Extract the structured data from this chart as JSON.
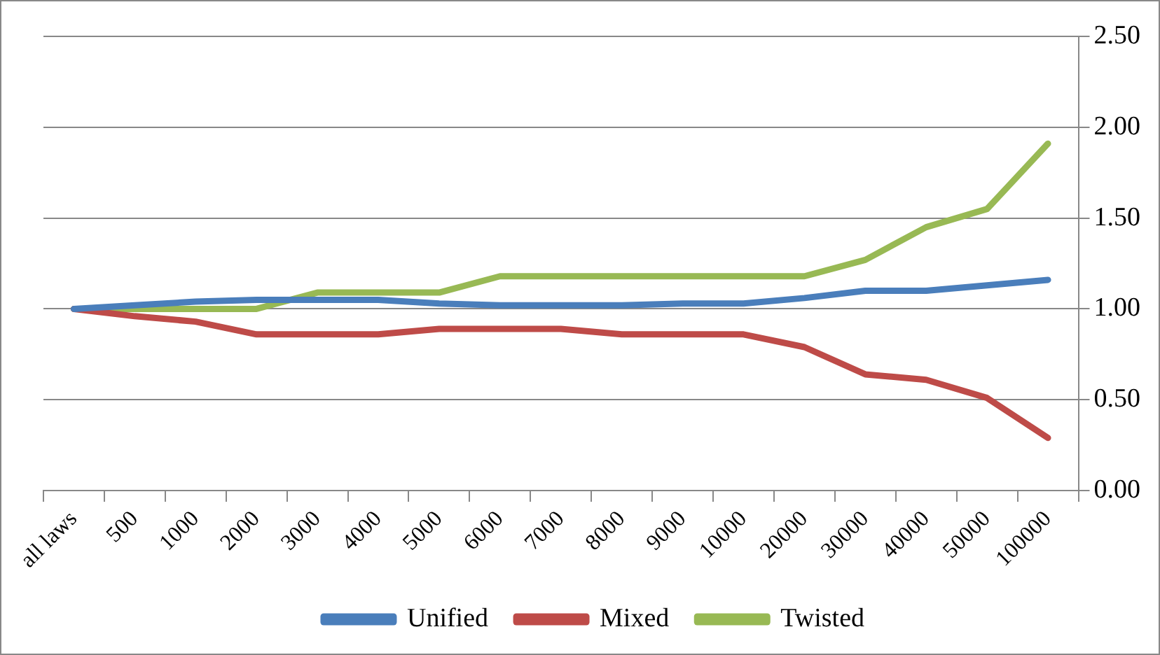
{
  "chart_data": {
    "type": "line",
    "categories": [
      "all laws",
      "500",
      "1000",
      "2000",
      "3000",
      "4000",
      "5000",
      "6000",
      "7000",
      "8000",
      "9000",
      "10000",
      "20000",
      "30000",
      "40000",
      "50000",
      "100000"
    ],
    "series": [
      {
        "name": "Unified",
        "color": "#4a7ebb",
        "values": [
          1.0,
          1.02,
          1.04,
          1.05,
          1.05,
          1.05,
          1.03,
          1.02,
          1.02,
          1.02,
          1.03,
          1.03,
          1.06,
          1.1,
          1.1,
          1.13,
          1.16
        ]
      },
      {
        "name": "Mixed",
        "color": "#be4b48",
        "values": [
          1.0,
          0.96,
          0.93,
          0.86,
          0.86,
          0.86,
          0.89,
          0.89,
          0.89,
          0.86,
          0.86,
          0.86,
          0.79,
          0.64,
          0.61,
          0.51,
          0.29
        ]
      },
      {
        "name": "Twisted",
        "color": "#98b954",
        "values": [
          1.0,
          1.0,
          1.0,
          1.0,
          1.09,
          1.09,
          1.09,
          1.18,
          1.18,
          1.18,
          1.18,
          1.18,
          1.18,
          1.27,
          1.45,
          1.55,
          1.91
        ]
      }
    ],
    "ylim": [
      0,
      2.5
    ],
    "yticks": [
      {
        "value": 0,
        "label": "0.00"
      },
      {
        "value": 0.5,
        "label": "0.50"
      },
      {
        "value": 1,
        "label": "1.00"
      },
      {
        "value": 1.5,
        "label": "1.50"
      },
      {
        "value": 2,
        "label": "2.00"
      },
      {
        "value": 2.5,
        "label": "2.50"
      }
    ],
    "grid": "y",
    "legend": "bottom",
    "marker": "none",
    "line_style": "solid"
  }
}
